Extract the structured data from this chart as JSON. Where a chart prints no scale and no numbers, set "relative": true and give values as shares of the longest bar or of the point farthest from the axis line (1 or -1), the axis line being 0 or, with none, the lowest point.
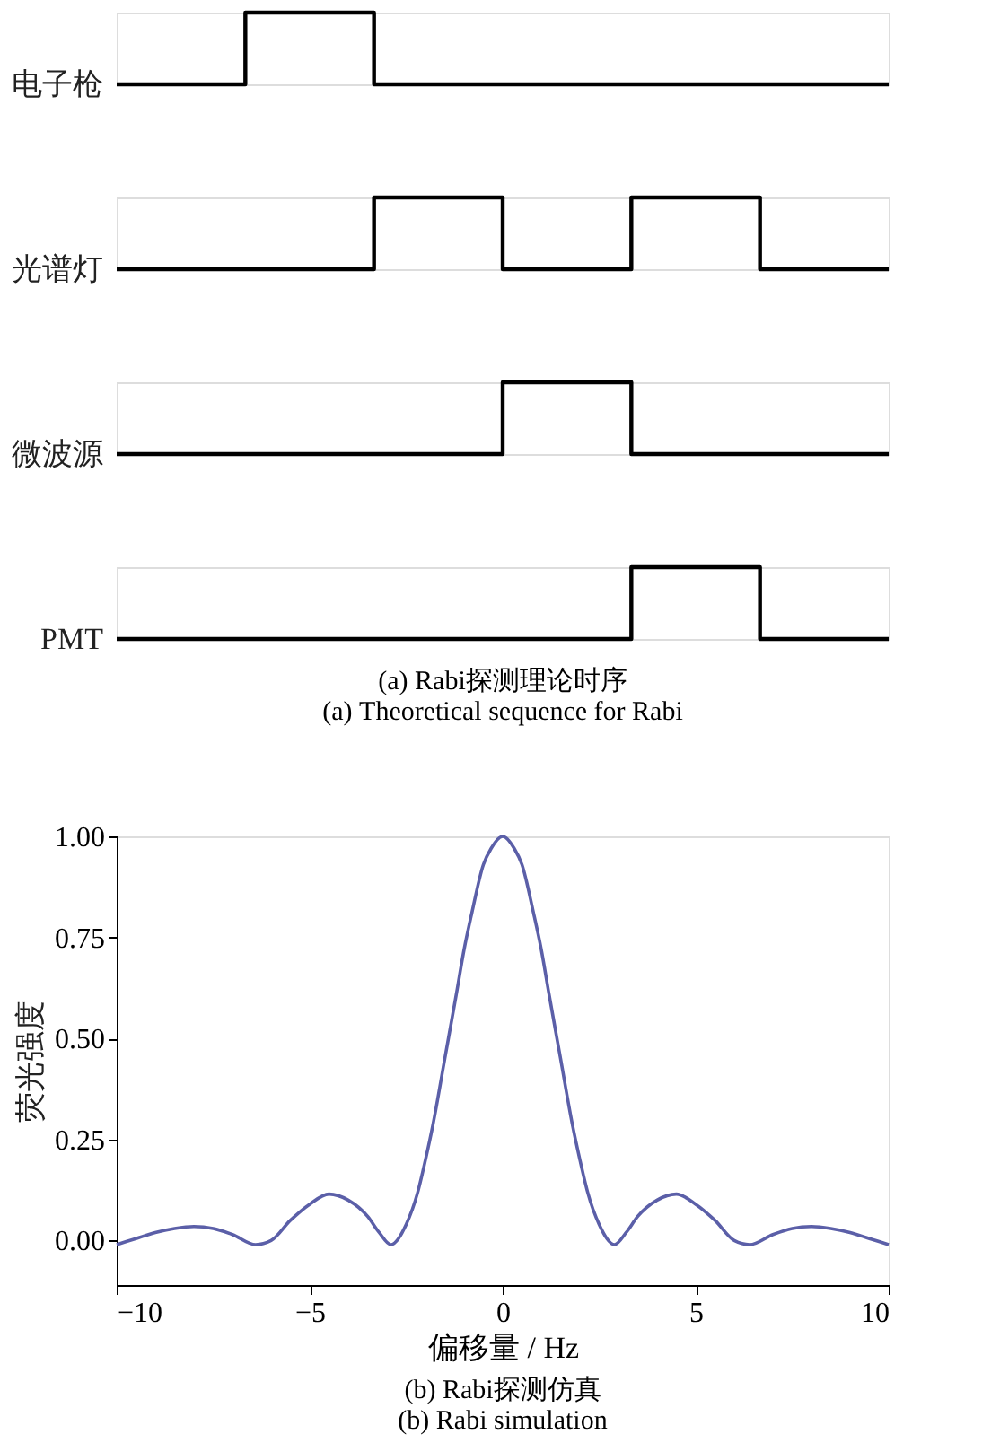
{
  "chart_data": [
    {
      "type": "step",
      "relative": true,
      "ylabel": "电子枪",
      "categories": [
        null,
        null,
        null,
        null,
        null,
        null,
        null
      ],
      "series": [
        {
          "color": "#000000",
          "values": [
            0,
            1,
            0,
            0,
            0,
            0,
            0
          ]
        }
      ]
    },
    {
      "type": "step",
      "relative": true,
      "ylabel": "光谱灯",
      "categories": [
        null,
        null,
        null,
        null,
        null,
        null,
        null
      ],
      "series": [
        {
          "color": "#000000",
          "values": [
            0,
            0,
            1,
            0,
            1,
            0,
            0
          ]
        }
      ]
    },
    {
      "type": "step",
      "relative": true,
      "ylabel": "微波源",
      "categories": [
        null,
        null,
        null,
        null,
        null,
        null,
        null
      ],
      "series": [
        {
          "color": "#000000",
          "values": [
            0,
            0,
            0,
            1,
            0,
            0,
            0
          ]
        }
      ]
    },
    {
      "type": "step",
      "relative": true,
      "ylabel": "PMT",
      "categories": [
        null,
        null,
        null,
        null,
        null,
        null,
        null
      ],
      "series": [
        {
          "color": "#000000",
          "values": [
            0,
            0,
            0,
            0,
            1,
            0,
            0
          ]
        }
      ],
      "annotations": [
        "(a) Rabi探测理论时序",
        "(a) Theoretical sequence for Rabi"
      ]
    },
    {
      "type": "line",
      "xlabel": "偏移量 / Hz",
      "ylabel": "荧光强度",
      "xlim": [
        -10,
        10
      ],
      "ylim": [
        -0.11,
        1.0
      ],
      "xticks": [
        -10,
        -5,
        0,
        5,
        10
      ],
      "yticks": [
        {
          "value": 0,
          "label": "0.00"
        },
        0.25,
        {
          "value": 0.5,
          "label": "0.50"
        },
        0.75,
        {
          "value": 1,
          "label": "1.00"
        }
      ],
      "grid": false,
      "x": [
        -10,
        -9.5,
        -9,
        -8.5,
        -8,
        -7.5,
        -7,
        -6.4,
        -6,
        -5.5,
        -5,
        -4.5,
        -4,
        -3.5,
        -3.2,
        -2.9,
        -2.5,
        -2.2,
        -2,
        -1.8,
        -1.5,
        -1.2,
        -1,
        -0.8,
        -0.5,
        -0.3,
        0,
        0.3,
        0.5,
        0.8,
        1,
        1.2,
        1.5,
        1.8,
        2,
        2.2,
        2.5,
        2.9,
        3.2,
        3.5,
        4,
        4.5,
        5,
        5.5,
        6,
        6.4,
        7,
        7.5,
        8,
        8.5,
        9,
        9.5,
        10
      ],
      "series": [
        {
          "color": "#5b5fa8",
          "values": [
            -0.01,
            0.005,
            0.02,
            0.03,
            0.035,
            0.03,
            0.015,
            -0.01,
            0.0,
            0.05,
            0.09,
            0.115,
            0.1,
            0.06,
            0.02,
            -0.01,
            0.04,
            0.12,
            0.2,
            0.29,
            0.45,
            0.61,
            0.72,
            0.81,
            0.93,
            0.97,
            1.0,
            0.97,
            0.93,
            0.81,
            0.72,
            0.61,
            0.45,
            0.29,
            0.2,
            0.12,
            0.04,
            -0.01,
            0.02,
            0.06,
            0.1,
            0.115,
            0.09,
            0.05,
            0.0,
            -0.01,
            0.015,
            0.03,
            0.035,
            0.03,
            0.02,
            0.005,
            -0.01
          ]
        }
      ],
      "annotations": [
        "(b) Rabi探测仿真",
        "(b) Rabi simulation"
      ]
    }
  ]
}
